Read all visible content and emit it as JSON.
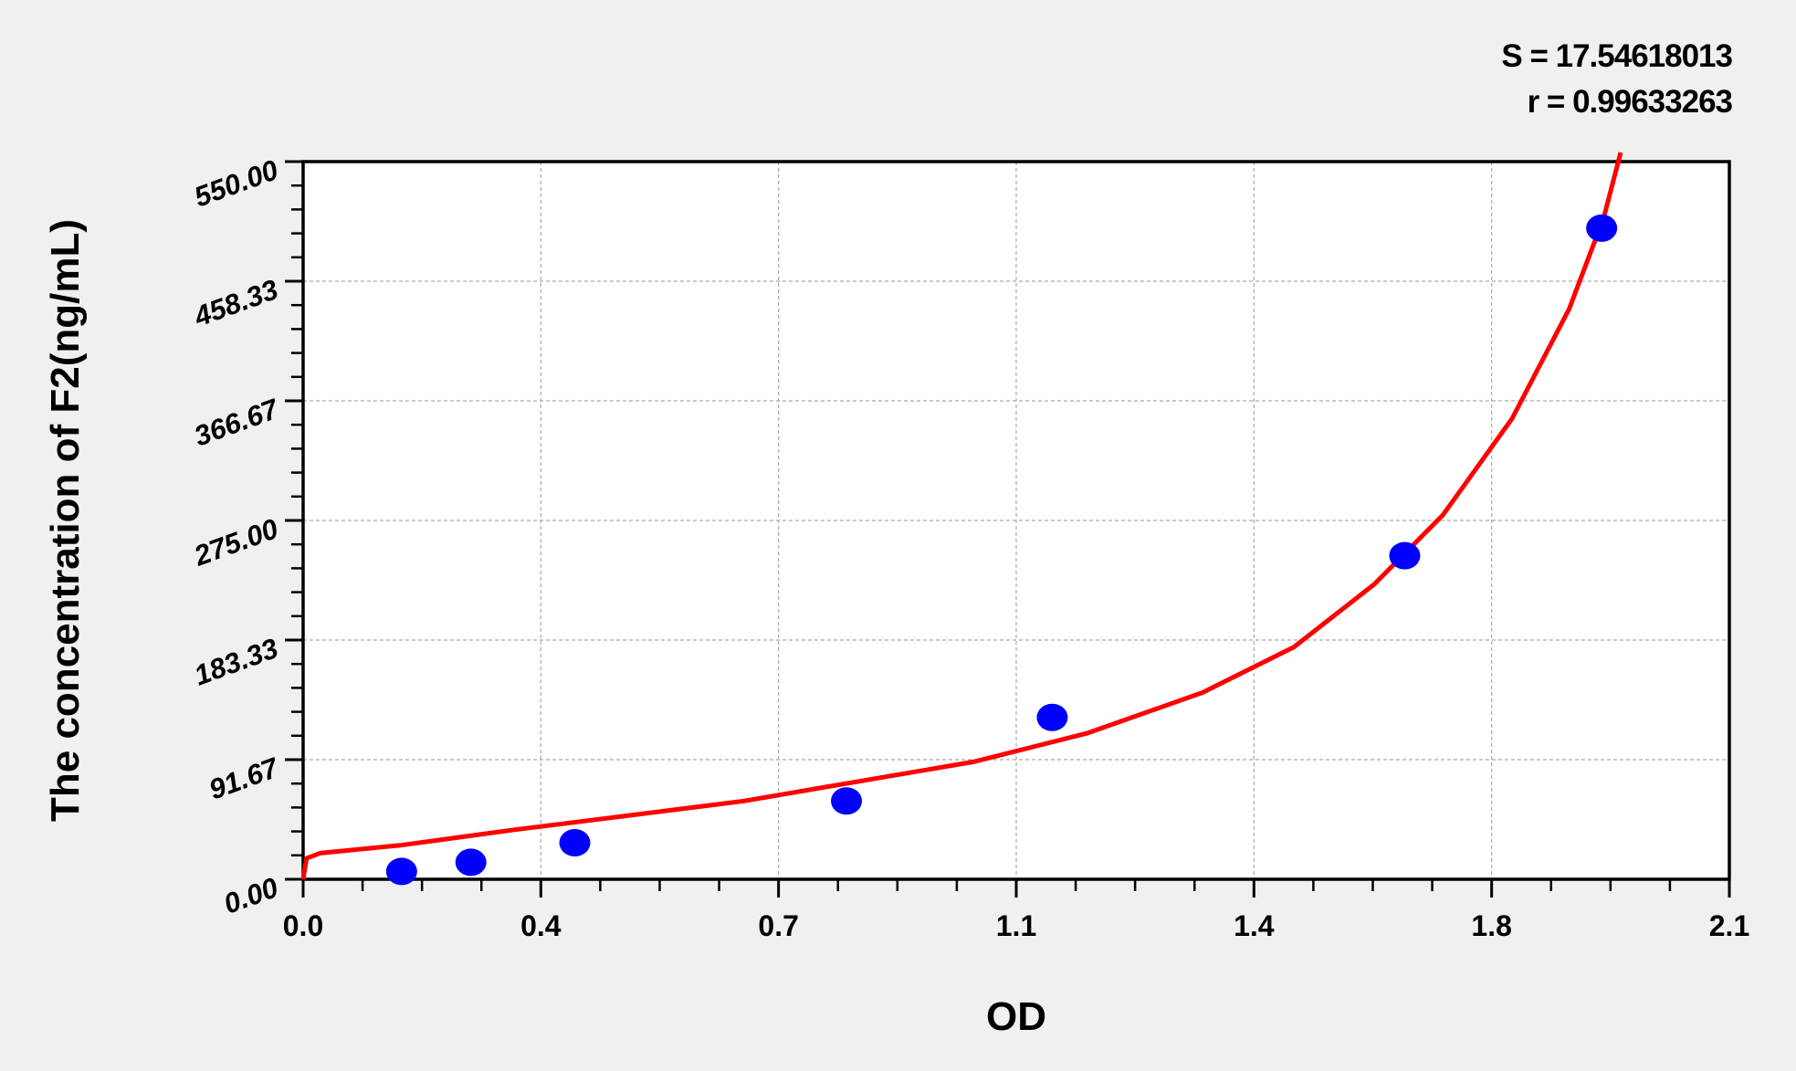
{
  "chart_data": {
    "type": "scatter",
    "title": "",
    "xlabel": "OD",
    "ylabel": "The concentration of F2(ng/mL)",
    "xlim": [
      0,
      2.1
    ],
    "ylim": [
      0,
      550
    ],
    "x_ticks": [
      "0.0",
      "0.4",
      "0.7",
      "1.1",
      "1.4",
      "1.8",
      "2.1"
    ],
    "y_ticks": [
      "0.00",
      "91.67",
      "183.33",
      "275.00",
      "366.67",
      "458.33",
      "550.00"
    ],
    "grid": true,
    "annotations": {
      "s": "S = 17.54618013",
      "r": "r = 0.99633263"
    },
    "points": {
      "x": [
        0.145,
        0.247,
        0.4,
        0.8,
        1.103,
        1.622,
        1.912
      ],
      "y": [
        6,
        13,
        28,
        60,
        124,
        248,
        499
      ],
      "color": "#0000ff"
    },
    "fit_curve": {
      "color": "#ff0000",
      "x": [
        0,
        0.005,
        0.025,
        0.143,
        0.312,
        0.481,
        0.649,
        0.818,
        0.987,
        1.155,
        1.324,
        1.459,
        1.577,
        1.678,
        1.78,
        1.864,
        1.915,
        1.94
      ],
      "y": [
        0,
        16,
        20,
        26,
        38,
        49,
        60,
        75,
        90,
        112,
        143,
        178,
        226,
        279,
        353,
        437,
        507,
        557
      ]
    }
  }
}
